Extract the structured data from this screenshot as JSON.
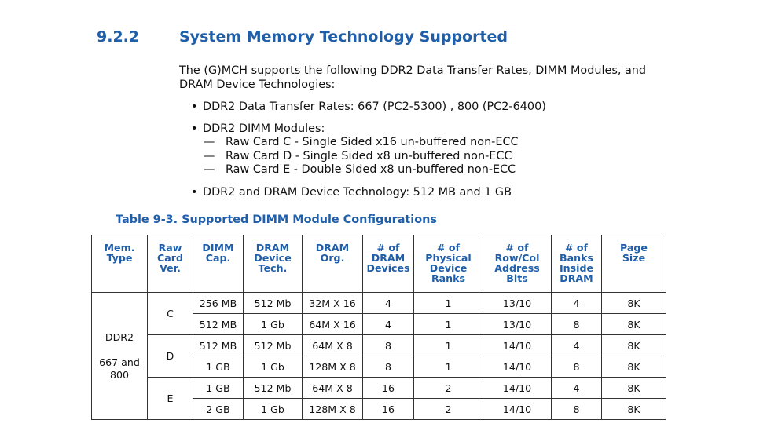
{
  "section": {
    "number": "9.2.2",
    "title": "System Memory Technology Supported"
  },
  "intro": "The (G)MCH supports the following DDR2 Data Transfer Rates, DIMM Modules, and DRAM Device Technologies:",
  "bullets": [
    {
      "text": "DDR2 Data Transfer Rates: 667 (PC2-5300) , 800 (PC2-6400)"
    },
    {
      "text": "DDR2 DIMM Modules:",
      "sub": [
        "Raw Card C - Single Sided x16 un-buffered non-ECC",
        "Raw Card D - Single Sided x8 un-buffered non-ECC",
        "Raw Card E - Double Sided x8 un-buffered non-ECC"
      ]
    },
    {
      "text": "DDR2 and DRAM Device Technology: 512 MB and 1 GB"
    }
  ],
  "table": {
    "caption": "Table 9-3. Supported DIMM Module Configurations",
    "headers": [
      [
        "Mem.",
        "Type"
      ],
      [
        "Raw",
        "Card",
        "Ver."
      ],
      [
        "DIMM",
        "Cap."
      ],
      [
        "DRAM",
        "Device",
        "Tech."
      ],
      [
        "DRAM",
        "Org."
      ],
      [
        "# of",
        "DRAM",
        "Devices"
      ],
      [
        "# of",
        "Physical",
        "Device",
        "Ranks"
      ],
      [
        "# of",
        "Row/Col",
        "Address",
        "Bits"
      ],
      [
        "# of",
        "Banks",
        "Inside",
        "DRAM"
      ],
      [
        "Page",
        "Size"
      ]
    ],
    "mem_type": [
      "DDR2",
      "667 and",
      "800"
    ],
    "raw_cards": [
      "C",
      "D",
      "E"
    ],
    "rows": [
      [
        "256 MB",
        "512 Mb",
        "32M X 16",
        "4",
        "1",
        "13/10",
        "4",
        "8K"
      ],
      [
        "512 MB",
        "1 Gb",
        "64M X 16",
        "4",
        "1",
        "13/10",
        "8",
        "8K"
      ],
      [
        "512 MB",
        "512 Mb",
        "64M X 8",
        "8",
        "1",
        "14/10",
        "4",
        "8K"
      ],
      [
        "1 GB",
        "1 Gb",
        "128M X 8",
        "8",
        "1",
        "14/10",
        "8",
        "8K"
      ],
      [
        "1 GB",
        "512 Mb",
        "64M X 8",
        "16",
        "2",
        "14/10",
        "4",
        "8K"
      ],
      [
        "2 GB",
        "1 Gb",
        "128M X 8",
        "16",
        "2",
        "14/10",
        "8",
        "8K"
      ]
    ]
  }
}
